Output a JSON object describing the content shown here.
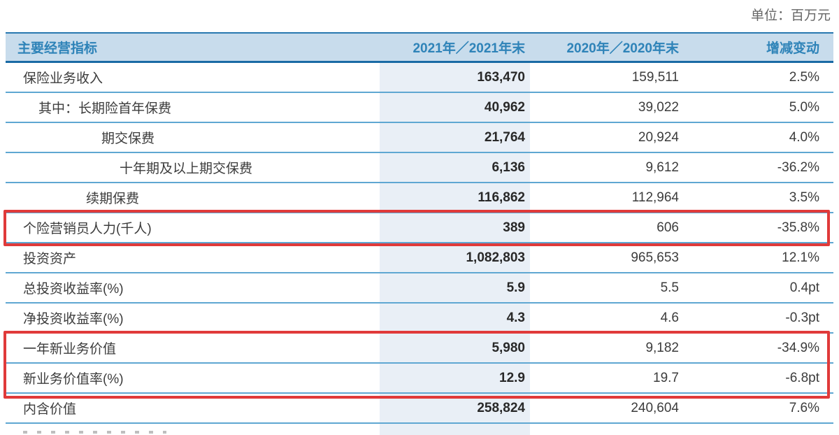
{
  "unit_label": "单位：百万元",
  "colors": {
    "header_bg": "#c8dcec",
    "header_text": "#2e83b8",
    "sep": "#5fa7d2",
    "header_border_top": "#2878b0",
    "header_border_bottom": "#1a6aa5",
    "band": "#e9eff6",
    "red": "#e03a3a",
    "label_text": "#3c3c3c",
    "bold_val": "#282828",
    "unit_text": "#666666"
  },
  "table": {
    "columns": [
      "主要经营指标",
      "2021年／2021年末",
      "2020年／2020年末",
      "增减变动"
    ],
    "rows": [
      {
        "label": "保险业务收入",
        "indent": 0,
        "v2021": "163,470",
        "v2020": "159,511",
        "change": "2.5%",
        "annotated": false
      },
      {
        "label": "其中：长期险首年保费",
        "indent": 1,
        "v2021": "40,962",
        "v2020": "39,022",
        "change": "5.0%",
        "annotated": false
      },
      {
        "label": "期交保费",
        "indent": 3,
        "v2021": "21,764",
        "v2020": "20,924",
        "change": "4.0%",
        "annotated": false
      },
      {
        "label": "十年期及以上期交保费",
        "indent": 4,
        "v2021": "6,136",
        "v2020": "9,612",
        "change": "-36.2%",
        "annotated": false
      },
      {
        "label": "续期保费",
        "indent": 2,
        "v2021": "116,862",
        "v2020": "112,964",
        "change": "3.5%",
        "annotated": false
      },
      {
        "label": "个险营销员人力(千人)",
        "indent": 0,
        "v2021": "389",
        "v2020": "606",
        "change": "-35.8%",
        "annotated": true
      },
      {
        "label": "投资资产",
        "indent": 0,
        "v2021": "1,082,803",
        "v2020": "965,653",
        "change": "12.1%",
        "annotated": false
      },
      {
        "label": "总投资收益率(%)",
        "indent": 0,
        "v2021": "5.9",
        "v2020": "5.5",
        "change": "0.4pt",
        "annotated": false
      },
      {
        "label": "净投资收益率(%)",
        "indent": 0,
        "v2021": "4.3",
        "v2020": "4.6",
        "change": "-0.3pt",
        "annotated": false
      },
      {
        "label": "一年新业务价值",
        "indent": 0,
        "v2021": "5,980",
        "v2020": "9,182",
        "change": "-34.9%",
        "annotated": true
      },
      {
        "label": "新业务价值率(%)",
        "indent": 0,
        "v2021": "12.9",
        "v2020": "19.7",
        "change": "-6.8pt",
        "annotated": true
      },
      {
        "label": "内含价值",
        "indent": 0,
        "v2021": "258,824",
        "v2020": "240,604",
        "change": "7.6%",
        "annotated": false
      }
    ]
  }
}
